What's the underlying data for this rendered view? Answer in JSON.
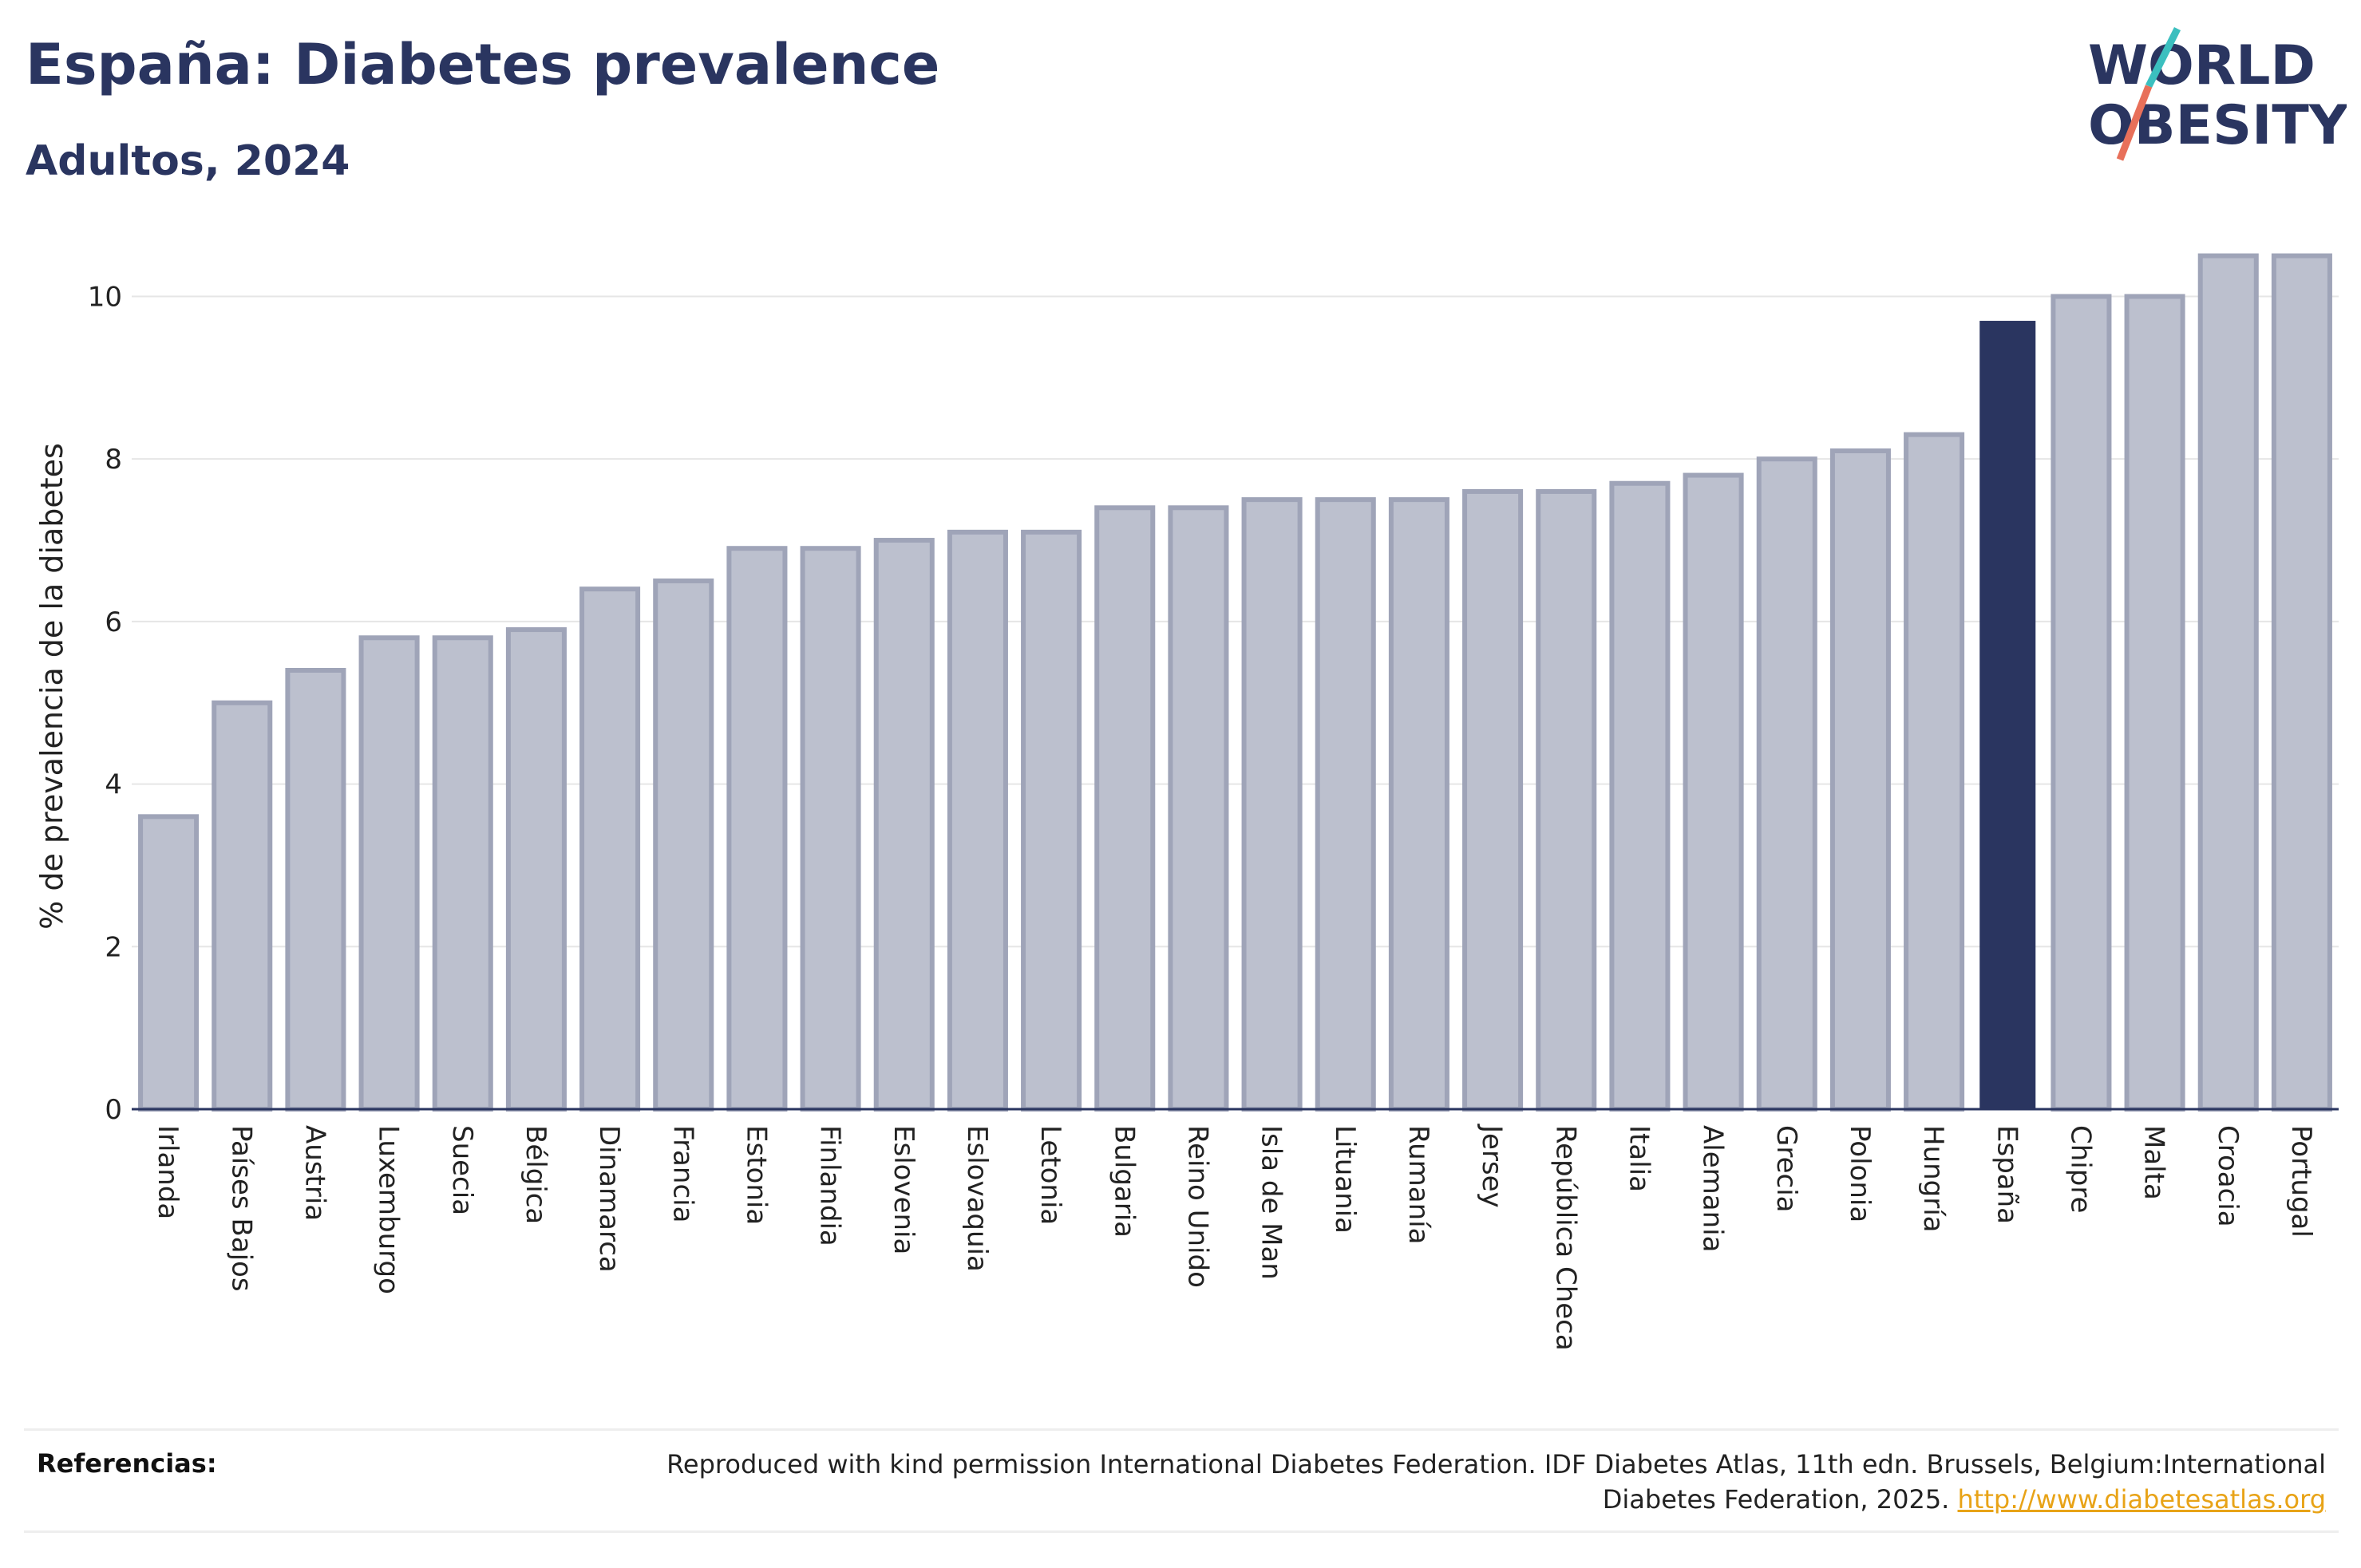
{
  "header": {
    "title": "España: Diabetes prevalence",
    "subtitle": "Adultos, 2024"
  },
  "logo": {
    "line1": "WORLD",
    "line2": "OBESITY",
    "colors": {
      "text": "#2a3560",
      "accent_teal": "#3bbfbf",
      "accent_coral": "#e8705a"
    }
  },
  "colors": {
    "highlight_bar": "#2a3560",
    "bar_fill": "#bcc0ce",
    "bar_stroke": "#9fa4b8",
    "gridline": "#e6e6e6",
    "link": "#e8a317"
  },
  "chart_data": {
    "type": "bar",
    "ylabel": "% de prevalencia de la diabetes",
    "ylim": [
      0,
      10.8
    ],
    "yticks": [
      0,
      2,
      4,
      6,
      8,
      10
    ],
    "grid": true,
    "highlight": "España",
    "categories": [
      "Irlanda",
      "Países Bajos",
      "Austria",
      "Luxemburgo",
      "Suecia",
      "Bélgica",
      "Dinamarca",
      "Francia",
      "Estonia",
      "Finlandia",
      "Eslovenia",
      "Eslovaquia",
      "Letonia",
      "Bulgaria",
      "Reino Unido",
      "Isla de Man",
      "Lituania",
      "Rumanía",
      "Jersey",
      "República Checa",
      "Italia",
      "Alemania",
      "Grecia",
      "Polonia",
      "Hungría",
      "España",
      "Chipre",
      "Malta",
      "Croacia",
      "Portugal"
    ],
    "values": [
      3.6,
      5.0,
      5.4,
      5.8,
      5.8,
      5.9,
      6.4,
      6.5,
      6.9,
      6.9,
      7.0,
      7.1,
      7.1,
      7.4,
      7.4,
      7.5,
      7.5,
      7.5,
      7.6,
      7.6,
      7.7,
      7.8,
      8.0,
      8.1,
      8.3,
      9.7,
      10.0,
      10.0,
      10.5,
      10.5
    ]
  },
  "references": {
    "label": "Referencias:",
    "text": "Reproduced with kind permission International Diabetes Federation. IDF Diabetes Atlas, 11th edn. Brussels, Belgium:International Diabetes Federation, 2025.",
    "link_text": "http://www.diabetesatlas.org"
  }
}
